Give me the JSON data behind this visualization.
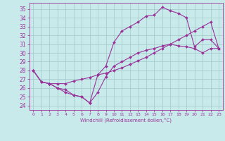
{
  "xlabel": "Windchill (Refroidissement éolien,°C)",
  "bg_color": "#c8eaea",
  "grid_color": "#a0c8c8",
  "line_color": "#993399",
  "xlim": [
    -0.5,
    23.5
  ],
  "ylim": [
    23.5,
    35.7
  ],
  "xticks": [
    0,
    1,
    2,
    3,
    4,
    5,
    6,
    7,
    8,
    9,
    10,
    11,
    12,
    13,
    14,
    15,
    16,
    17,
    18,
    19,
    20,
    21,
    22,
    23
  ],
  "yticks": [
    24,
    25,
    26,
    27,
    28,
    29,
    30,
    31,
    32,
    33,
    34,
    35
  ],
  "line1_x": [
    0,
    1,
    2,
    3,
    4,
    5,
    6,
    7,
    8,
    9,
    10,
    11,
    12,
    13,
    14,
    15,
    16,
    17,
    18,
    19,
    20,
    21,
    22,
    23
  ],
  "line1_y": [
    28,
    26.7,
    26.5,
    26.0,
    25.8,
    25.2,
    25.0,
    24.3,
    27.5,
    28.5,
    31.2,
    32.5,
    33.0,
    33.5,
    34.2,
    34.3,
    35.2,
    34.8,
    34.5,
    34.0,
    30.7,
    31.5,
    31.5,
    30.5
  ],
  "line2_x": [
    0,
    1,
    2,
    3,
    4,
    5,
    6,
    7,
    8,
    9,
    10,
    11,
    12,
    13,
    14,
    15,
    16,
    17,
    18,
    19,
    20,
    21,
    22,
    23
  ],
  "line2_y": [
    28,
    26.7,
    26.5,
    26.5,
    26.5,
    26.8,
    27.0,
    27.2,
    27.5,
    27.7,
    28.0,
    28.3,
    28.7,
    29.1,
    29.5,
    30.0,
    30.5,
    31.0,
    31.5,
    32.0,
    32.5,
    33.0,
    33.5,
    30.5
  ],
  "line3_x": [
    0,
    1,
    2,
    3,
    4,
    5,
    6,
    7,
    8,
    9,
    10,
    11,
    12,
    13,
    14,
    15,
    16,
    17,
    18,
    19,
    20,
    21,
    22,
    23
  ],
  "line3_y": [
    28,
    26.7,
    26.5,
    26.0,
    25.5,
    25.2,
    25.0,
    24.3,
    25.5,
    27.3,
    28.5,
    29.0,
    29.5,
    30.0,
    30.3,
    30.5,
    30.8,
    31.0,
    30.8,
    30.7,
    30.5,
    30.0,
    30.5,
    30.5
  ]
}
